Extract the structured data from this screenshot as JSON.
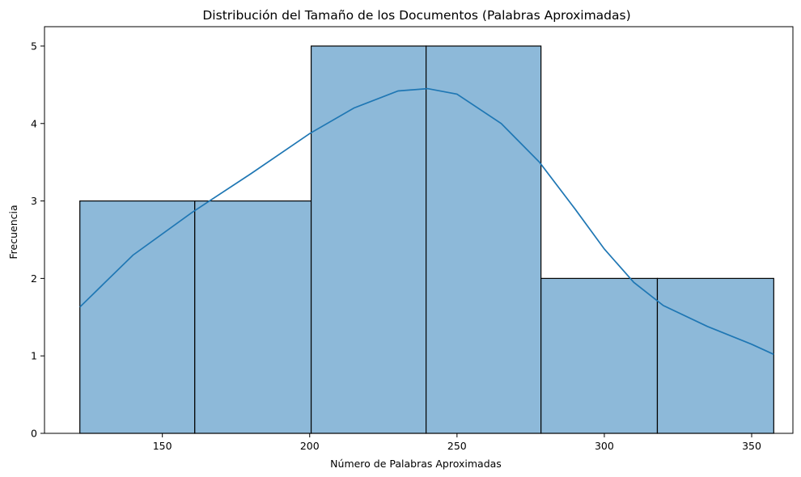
{
  "chart_data": {
    "type": "bar",
    "title": "Distribución del Tamaño de los Documentos (Palabras Aproximadas)",
    "xlabel": "Número de Palabras Aproximadas",
    "ylabel": "Frecuencia",
    "xlim": [
      110,
      364
    ],
    "ylim": [
      0,
      5.25
    ],
    "xticks": [
      150,
      200,
      250,
      300,
      350
    ],
    "yticks": [
      0,
      1,
      2,
      3,
      4,
      5
    ],
    "grid": false,
    "bins": [
      {
        "start": 122,
        "end": 161,
        "count": 3
      },
      {
        "start": 161,
        "end": 200.5,
        "count": 3
      },
      {
        "start": 200.5,
        "end": 239.5,
        "count": 5
      },
      {
        "start": 239.5,
        "end": 278.5,
        "count": 5
      },
      {
        "start": 278.5,
        "end": 318,
        "count": 2
      },
      {
        "start": 318,
        "end": 357.5,
        "count": 2
      }
    ],
    "kde": {
      "x": [
        122,
        140,
        160,
        180,
        200,
        215,
        230,
        240,
        250,
        265,
        278,
        290,
        300,
        310,
        320,
        335,
        350,
        357.5
      ],
      "y": [
        1.63,
        2.3,
        2.85,
        3.35,
        3.87,
        4.2,
        4.42,
        4.45,
        4.38,
        4.0,
        3.5,
        2.9,
        2.38,
        1.95,
        1.65,
        1.38,
        1.15,
        1.02
      ]
    },
    "colors": {
      "bar_fill": "#8db9d9",
      "bar_edge": "#000000",
      "kde_line": "#1f77b4"
    }
  }
}
